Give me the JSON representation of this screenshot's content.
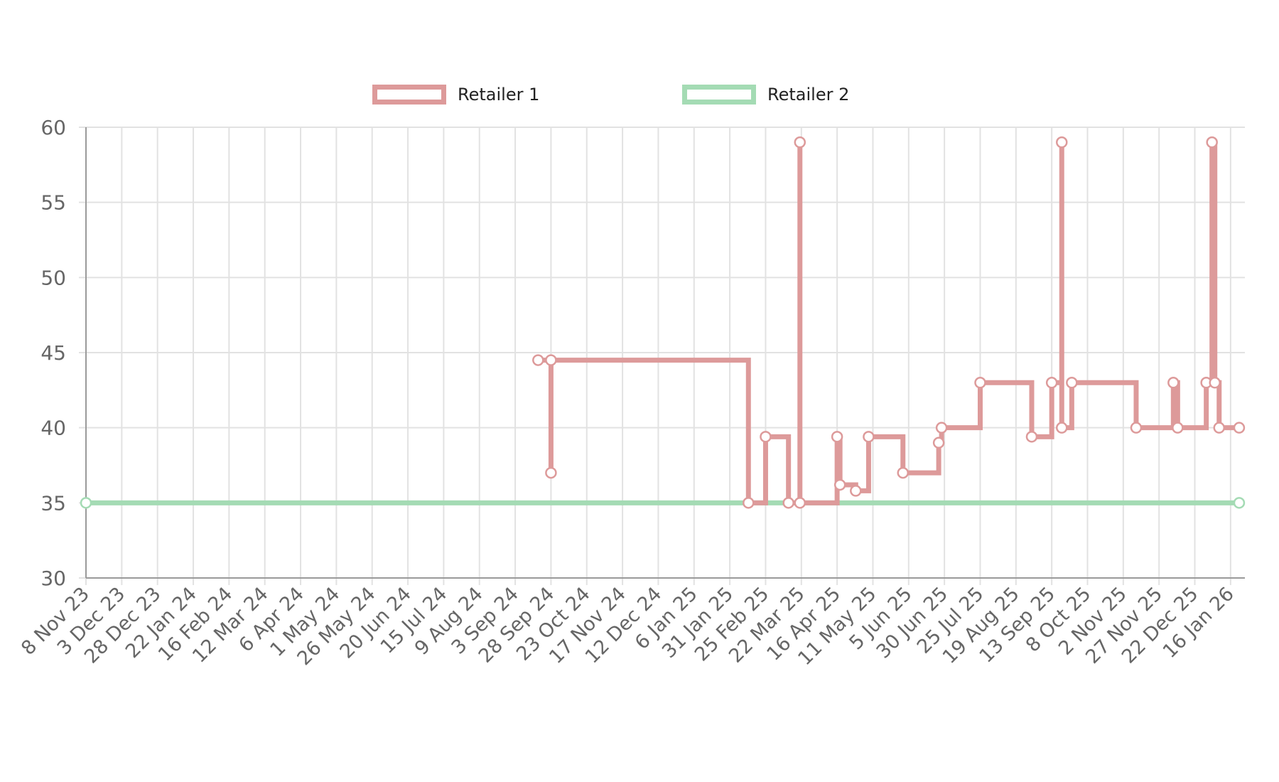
{
  "chart_data": {
    "type": "line",
    "title": "",
    "xlabel": "",
    "ylabel": "",
    "ylim": [
      30,
      60
    ],
    "y_ticks": [
      60,
      55,
      50,
      45,
      40,
      35,
      30
    ],
    "x_range": [
      "2023-11-08",
      "2026-01-26"
    ],
    "x_tick_labels": [
      "8 Nov 23",
      "3 Dec 23",
      "28 Dec 23",
      "22 Jan 24",
      "16 Feb 24",
      "12 Mar 24",
      "6 Apr 24",
      "1 May 24",
      "26 May 24",
      "20 Jun 24",
      "15 Jul 24",
      "9 Aug 24",
      "3 Sep 24",
      "28 Sep 24",
      "23 Oct 24",
      "17 Nov 24",
      "12 Dec 24",
      "6 Jan 25",
      "31 Jan 25",
      "25 Feb 25",
      "22 Mar 25",
      "16 Apr 25",
      "11 May 25",
      "5 Jun 25",
      "30 Jun 25",
      "25 Jul 25",
      "19 Aug 25",
      "13 Sep 25",
      "8 Oct 25",
      "2 Nov 25",
      "27 Nov 25",
      "22 Dec 25",
      "16 Jan 26"
    ],
    "step": true,
    "grid": true,
    "legend_position": "top",
    "series": [
      {
        "name": "Retailer 1",
        "color": "#dd9a9a",
        "points": [
          [
            "2024-09-19",
            44.5
          ],
          [
            "2024-09-28",
            37
          ],
          [
            "2024-09-28",
            44.5
          ],
          [
            "2025-02-13",
            35
          ],
          [
            "2025-02-25",
            39.4
          ],
          [
            "2025-03-13",
            35
          ],
          [
            "2025-03-21",
            59
          ],
          [
            "2025-03-21",
            35
          ],
          [
            "2025-04-16",
            39.4
          ],
          [
            "2025-04-18",
            36.2
          ],
          [
            "2025-04-29",
            35.8
          ],
          [
            "2025-05-08",
            39.4
          ],
          [
            "2025-06-01",
            37
          ],
          [
            "2025-06-26",
            39
          ],
          [
            "2025-06-28",
            40
          ],
          [
            "2025-07-25",
            43
          ],
          [
            "2025-08-30",
            39.4
          ],
          [
            "2025-09-13",
            43
          ],
          [
            "2025-09-20",
            59
          ],
          [
            "2025-09-20",
            40
          ],
          [
            "2025-09-27",
            43
          ],
          [
            "2025-11-11",
            40
          ],
          [
            "2025-12-07",
            43
          ],
          [
            "2025-12-10",
            40
          ],
          [
            "2025-12-30",
            43
          ],
          [
            "2026-01-03",
            59
          ],
          [
            "2026-01-05",
            43
          ],
          [
            "2026-01-08",
            40
          ],
          [
            "2026-01-22",
            40
          ]
        ]
      },
      {
        "name": "Retailer 2",
        "color": "#a4dbb4",
        "points": [
          [
            "2023-11-08",
            35
          ],
          [
            "2026-01-22",
            35
          ]
        ]
      }
    ]
  },
  "legend": [
    {
      "label": "Retailer 1",
      "color": "#dd9a9a"
    },
    {
      "label": "Retailer 2",
      "color": "#a4dbb4"
    }
  ]
}
